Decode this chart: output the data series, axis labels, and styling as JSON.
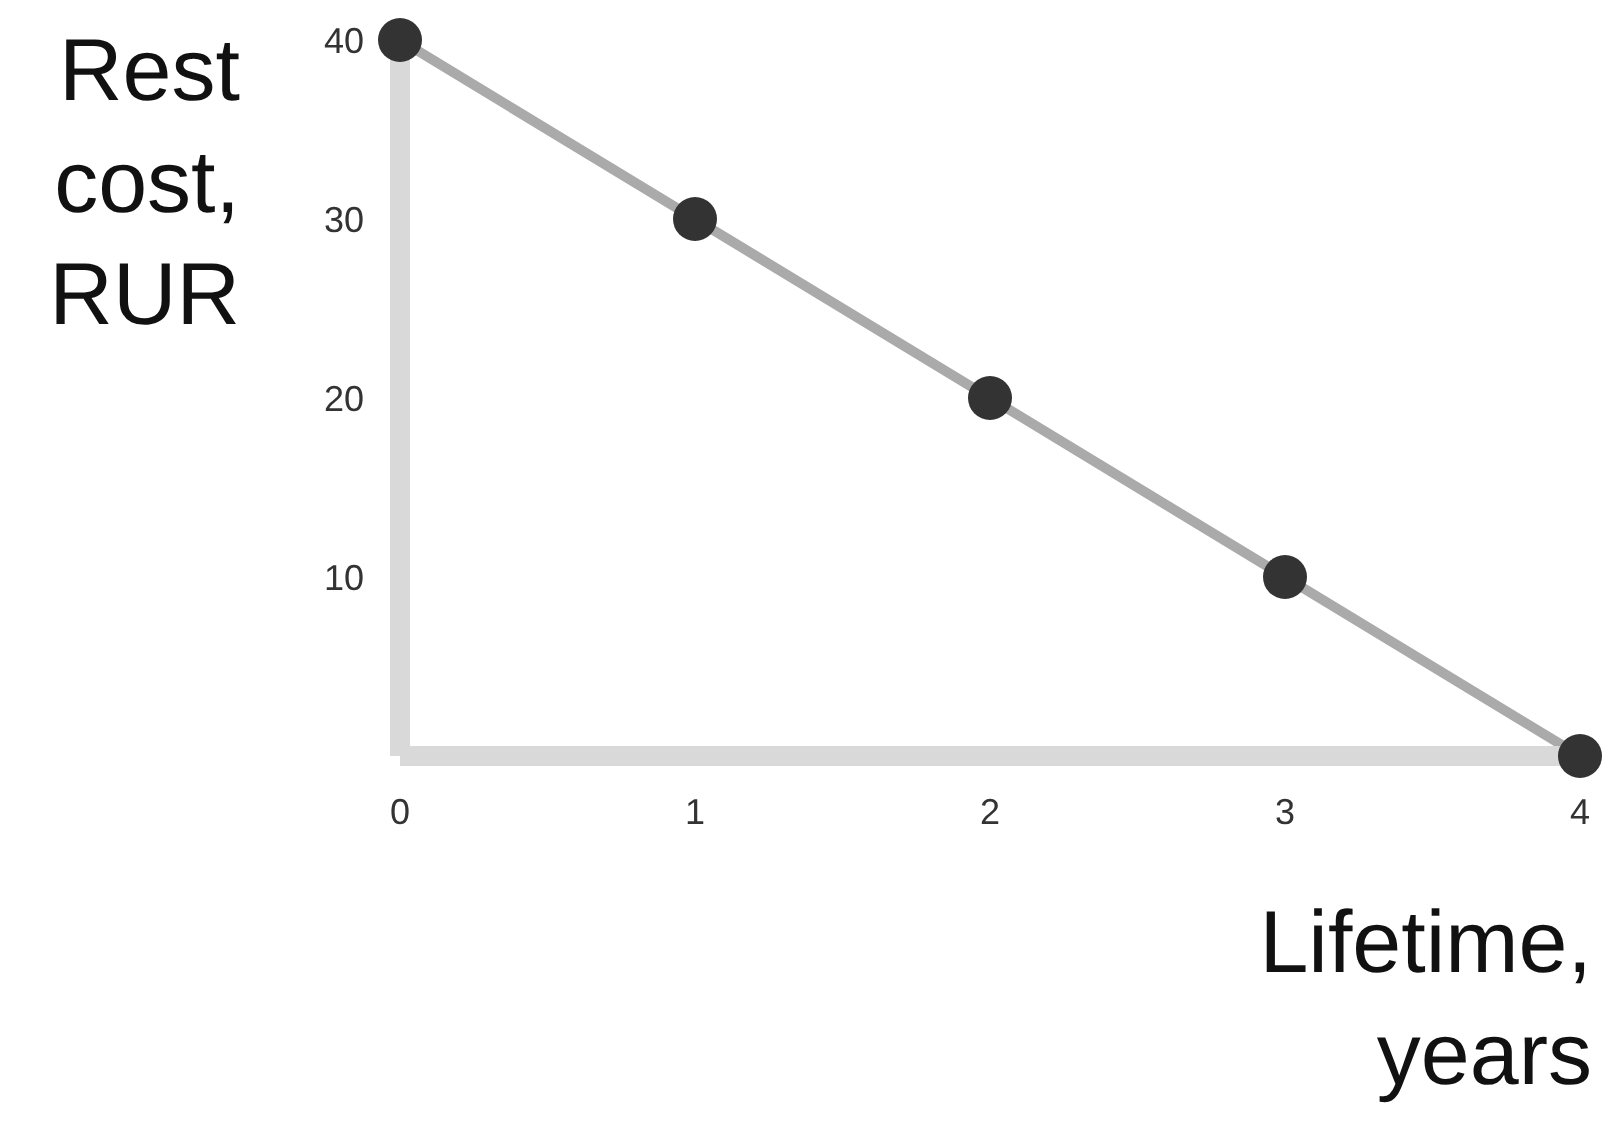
{
  "chart_data": {
    "type": "line",
    "xlabel": "Lifetime, years",
    "ylabel": "Rest cost, RUR",
    "x": [
      0,
      1,
      2,
      3,
      4
    ],
    "series": [
      {
        "color": "#aaaaaa",
        "values": [
          40,
          30,
          20,
          10,
          0
        ]
      }
    ],
    "xlim": [
      0,
      4
    ],
    "xticks": [
      0,
      1,
      2,
      3,
      4
    ],
    "ylim": [
      0,
      40
    ],
    "yticks": [
      {
        "value": 0,
        "label": null
      },
      10,
      20,
      30,
      40
    ],
    "grid": false,
    "legend": false,
    "marker": "circle",
    "line_style": "solid"
  }
}
